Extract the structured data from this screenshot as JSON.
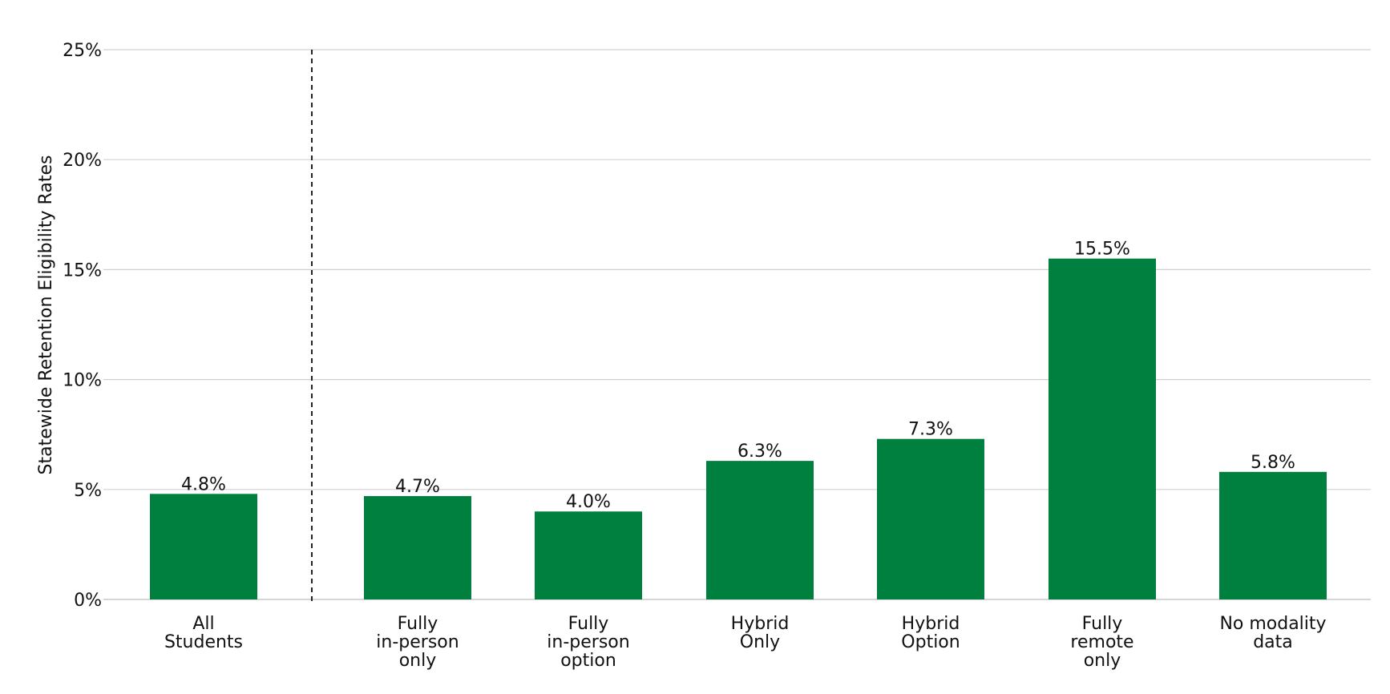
{
  "chart_data": {
    "type": "bar",
    "title": "",
    "xlabel": "",
    "ylabel": "Statewide Retention Eligibility Rates",
    "ylim": [
      0,
      25
    ],
    "y_ticks": [
      {
        "value": 0,
        "label": "0%"
      },
      {
        "value": 5,
        "label": "5%"
      },
      {
        "value": 10,
        "label": "10%"
      },
      {
        "value": 15,
        "label": "15%"
      },
      {
        "value": 20,
        "label": "20%"
      },
      {
        "value": 25,
        "label": "25%"
      }
    ],
    "grid": true,
    "legend": "none",
    "bar_color": "#00803f",
    "separator_after_category": 0,
    "categories": [
      {
        "lines": [
          "All",
          "Students"
        ],
        "value": 4.8,
        "value_label": "4.8%"
      },
      {
        "lines": [
          "Fully",
          "in-person",
          "only"
        ],
        "value": 4.7,
        "value_label": "4.7%"
      },
      {
        "lines": [
          "Fully",
          "in-person",
          "option"
        ],
        "value": 4.0,
        "value_label": "4.0%"
      },
      {
        "lines": [
          "Hybrid",
          "Only"
        ],
        "value": 6.3,
        "value_label": "6.3%"
      },
      {
        "lines": [
          "Hybrid",
          "Option"
        ],
        "value": 7.3,
        "value_label": "7.3%"
      },
      {
        "lines": [
          "Fully",
          "remote",
          "only"
        ],
        "value": 15.5,
        "value_label": "15.5%"
      },
      {
        "lines": [
          "No modality",
          "data"
        ],
        "value": 5.8,
        "value_label": "5.8%"
      }
    ]
  }
}
